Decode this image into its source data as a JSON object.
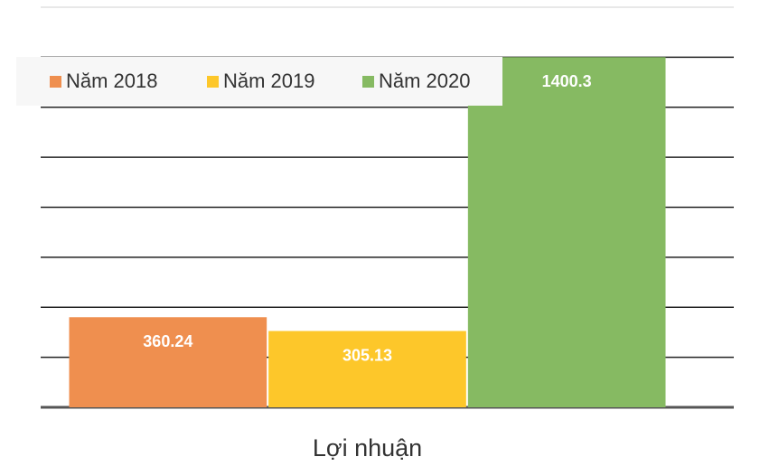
{
  "chart_data": {
    "type": "bar",
    "categories": [
      "Lợi nhuận"
    ],
    "series": [
      {
        "name": "Năm 2018",
        "color": "#ef8f4f",
        "values": [
          360.24
        ]
      },
      {
        "name": "Năm 2019",
        "color": "#fdc72a",
        "values": [
          305.13
        ]
      },
      {
        "name": "Năm 2020",
        "color": "#86ba62",
        "values": [
          1400.3
        ]
      }
    ],
    "ylim": [
      0,
      1600
    ],
    "yticks": [
      0,
      200,
      400,
      600,
      800,
      1000,
      1200,
      1400,
      1600
    ],
    "grid": true,
    "legend": "top-left"
  }
}
